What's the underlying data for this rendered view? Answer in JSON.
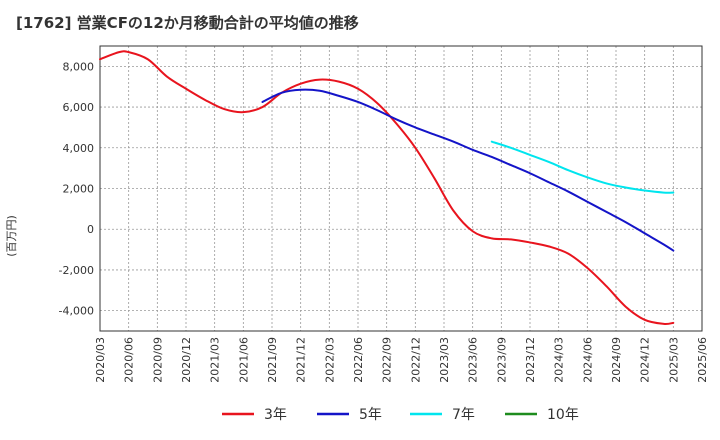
{
  "chart_data": {
    "type": "line",
    "title": "[1762]  営業CFの12か月移動合計の平均値の推移",
    "ylabel": "(百万円)",
    "xlabel": "",
    "ylim": [
      -5000,
      9000
    ],
    "yticks": [
      8000,
      6000,
      4000,
      2000,
      0,
      -2000,
      -4000
    ],
    "ytick_labels": [
      "8,000",
      "6,000",
      "4,000",
      "2,000",
      "0",
      "-2,000",
      "-4,000"
    ],
    "xticks": [
      "2020/03",
      "2020/06",
      "2020/09",
      "2020/12",
      "2021/03",
      "2021/06",
      "2021/09",
      "2021/12",
      "2022/03",
      "2022/06",
      "2022/09",
      "2022/12",
      "2023/03",
      "2023/06",
      "2023/09",
      "2023/12",
      "2024/03",
      "2024/06",
      "2024/09",
      "2024/12",
      "2025/03",
      "2025/06"
    ],
    "grid": true,
    "legend_position": "bottom",
    "series": [
      {
        "name": "3年",
        "color": "#e8141e",
        "points": [
          [
            "2020/03",
            8350
          ],
          [
            "2020/05",
            8700
          ],
          [
            "2020/06",
            8700
          ],
          [
            "2020/08",
            8350
          ],
          [
            "2020/10",
            7500
          ],
          [
            "2020/12",
            6900
          ],
          [
            "2021/02",
            6350
          ],
          [
            "2021/04",
            5900
          ],
          [
            "2021/06",
            5750
          ],
          [
            "2021/08",
            6000
          ],
          [
            "2021/10",
            6700
          ],
          [
            "2021/12",
            7150
          ],
          [
            "2022/02",
            7350
          ],
          [
            "2022/04",
            7250
          ],
          [
            "2022/06",
            6900
          ],
          [
            "2022/08",
            6200
          ],
          [
            "2022/10",
            5200
          ],
          [
            "2022/12",
            4000
          ],
          [
            "2023/02",
            2500
          ],
          [
            "2023/04",
            900
          ],
          [
            "2023/06",
            -100
          ],
          [
            "2023/08",
            -450
          ],
          [
            "2023/10",
            -500
          ],
          [
            "2023/12",
            -650
          ],
          [
            "2024/02",
            -850
          ],
          [
            "2024/04",
            -1200
          ],
          [
            "2024/06",
            -1900
          ],
          [
            "2024/08",
            -2800
          ],
          [
            "2024/10",
            -3800
          ],
          [
            "2024/12",
            -4450
          ],
          [
            "2025/02",
            -4650
          ],
          [
            "2025/03",
            -4600
          ]
        ]
      },
      {
        "name": "5年",
        "color": "#1414c8",
        "points": [
          [
            "2021/08",
            6250
          ],
          [
            "2021/10",
            6700
          ],
          [
            "2021/12",
            6850
          ],
          [
            "2022/02",
            6800
          ],
          [
            "2022/04",
            6550
          ],
          [
            "2022/06",
            6250
          ],
          [
            "2022/08",
            5850
          ],
          [
            "2022/10",
            5400
          ],
          [
            "2022/12",
            5000
          ],
          [
            "2023/02",
            4650
          ],
          [
            "2023/04",
            4300
          ],
          [
            "2023/06",
            3900
          ],
          [
            "2023/08",
            3550
          ],
          [
            "2023/10",
            3150
          ],
          [
            "2023/12",
            2750
          ],
          [
            "2024/02",
            2300
          ],
          [
            "2024/04",
            1850
          ],
          [
            "2024/06",
            1350
          ],
          [
            "2024/08",
            850
          ],
          [
            "2024/10",
            350
          ],
          [
            "2024/12",
            -200
          ],
          [
            "2025/02",
            -750
          ],
          [
            "2025/03",
            -1050
          ]
        ]
      },
      {
        "name": "7年",
        "color": "#00e5ee",
        "points": [
          [
            "2023/08",
            4300
          ],
          [
            "2023/10",
            4000
          ],
          [
            "2023/12",
            3650
          ],
          [
            "2024/02",
            3300
          ],
          [
            "2024/04",
            2900
          ],
          [
            "2024/06",
            2550
          ],
          [
            "2024/08",
            2250
          ],
          [
            "2024/10",
            2050
          ],
          [
            "2024/12",
            1900
          ],
          [
            "2025/02",
            1800
          ],
          [
            "2025/03",
            1800
          ]
        ]
      },
      {
        "name": "10年",
        "color": "#1e8c1e",
        "points": []
      }
    ]
  }
}
